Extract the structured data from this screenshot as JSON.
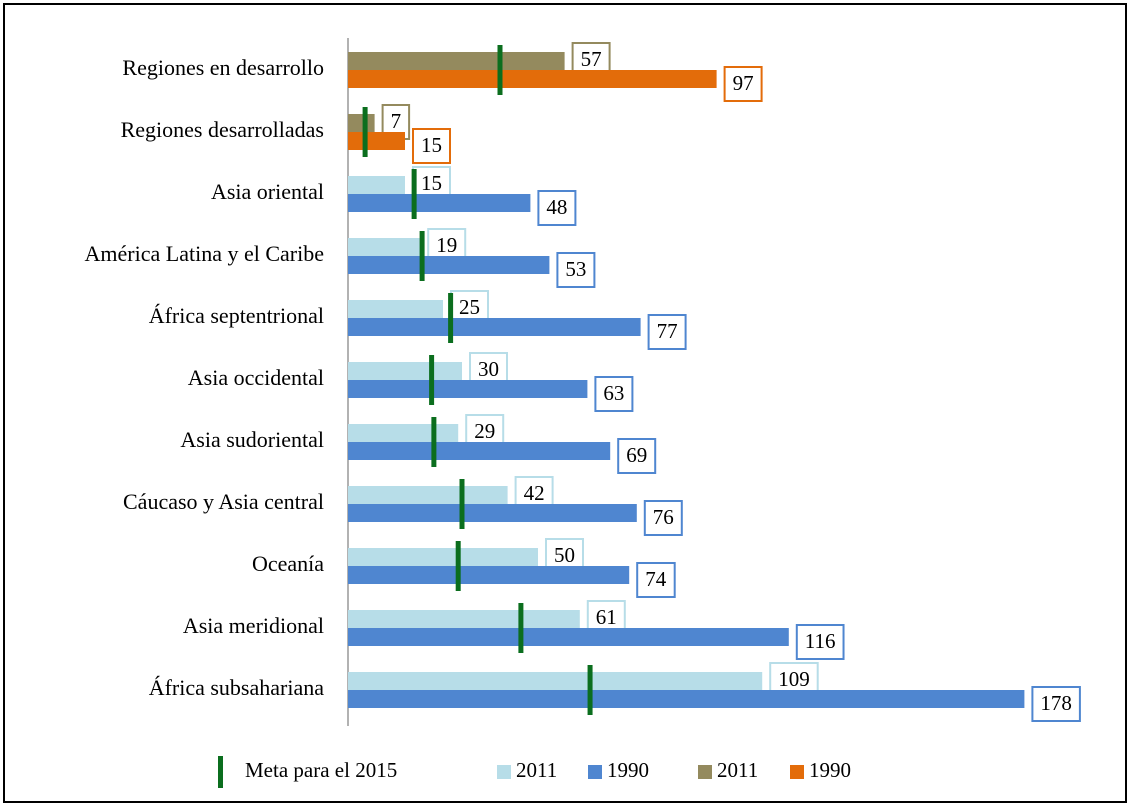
{
  "chart_data": {
    "type": "hbar",
    "categories": [
      "Regiones en desarrollo",
      "Regiones desarrolladas",
      "Asia oriental",
      "América Latina y el Caribe",
      "África septentrional",
      "Asia occidental",
      "Asia sudoriental",
      "Cáucaso y Asia central",
      "Oceanía",
      "Asia meridional",
      "África subsahariana"
    ],
    "series": [
      {
        "name": "2011",
        "color": "#b7dde8",
        "values": [
          null,
          null,
          15,
          19,
          25,
          30,
          29,
          42,
          50,
          61,
          109
        ]
      },
      {
        "name": "1990",
        "color": "#4f86d0",
        "values": [
          null,
          null,
          48,
          53,
          77,
          63,
          69,
          76,
          74,
          116,
          178
        ]
      },
      {
        "name": "2011",
        "color": "#948a5e",
        "values": [
          57,
          7,
          null,
          null,
          null,
          null,
          null,
          null,
          null,
          null,
          null
        ]
      },
      {
        "name": "1990",
        "color": "#e36c0a",
        "values": [
          97,
          15,
          null,
          null,
          null,
          null,
          null,
          null,
          null,
          null,
          null
        ]
      }
    ],
    "target": {
      "name": "Meta para el 2015",
      "color": "#0b6e1e",
      "values": [
        40,
        4.5,
        17.4,
        19.5,
        27,
        22,
        22.6,
        30,
        29,
        45.5,
        63.7
      ]
    },
    "xlim": [
      0,
      195
    ]
  }
}
